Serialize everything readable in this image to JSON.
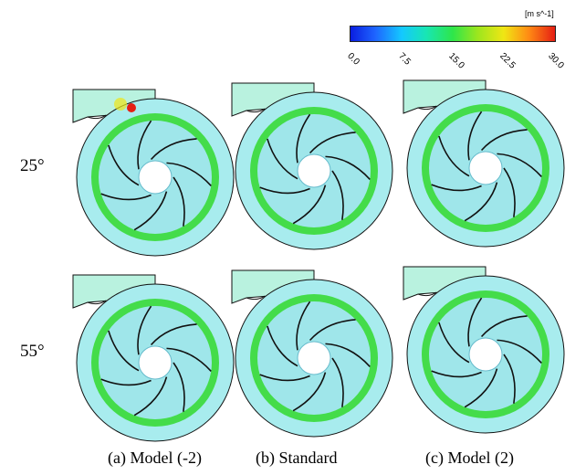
{
  "colorbar": {
    "units": "[m s^-1]",
    "ticks": [
      "0.0",
      "7.5",
      "15.0",
      "22.5",
      "30.0"
    ]
  },
  "row_labels": [
    "25°",
    "55°"
  ],
  "column_labels": [
    "(a) Model (-2)",
    "(b) Standard",
    "(c) Model (2)"
  ],
  "colors": {
    "colormap": [
      "#0a1ee0",
      "#14c8ff",
      "#2ee64a",
      "#f0e614",
      "#e51e14"
    ],
    "volute_fill": "#a8ecee",
    "ring_fill": "#44dc4a",
    "inlet_fill": "#b9f2df",
    "hub_fill": "#ffffff",
    "blade_stroke": "#111111"
  },
  "panels": [
    {
      "name": "panel-25-model-neg2",
      "hot_spot": true
    },
    {
      "name": "panel-25-standard",
      "hot_spot": false
    },
    {
      "name": "panel-25-model-2",
      "hot_spot": false
    },
    {
      "name": "panel-55-model-neg2",
      "hot_spot": false
    },
    {
      "name": "panel-55-standard",
      "hot_spot": false
    },
    {
      "name": "panel-55-model-2",
      "hot_spot": false
    }
  ]
}
